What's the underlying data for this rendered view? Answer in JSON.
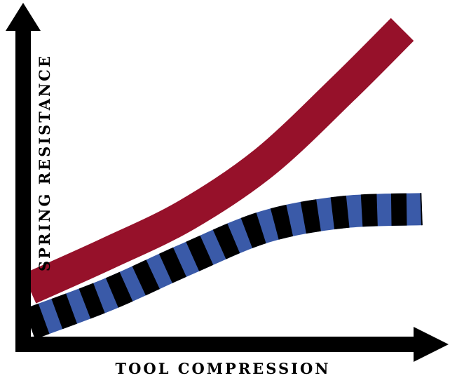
{
  "chart_data": {
    "type": "line",
    "title": "",
    "xlabel": "TOOL COMPRESSION",
    "ylabel": "SPRING RESISTANCE",
    "grid": false,
    "legend": "none",
    "series": [
      {
        "style": "solid",
        "color": "#96112a",
        "points": [
          [
            0,
            0.12
          ],
          [
            0.2,
            0.24
          ],
          [
            0.4,
            0.37
          ],
          [
            0.6,
            0.55
          ],
          [
            0.8,
            0.8
          ],
          [
            0.95,
            1.0
          ]
        ]
      },
      {
        "style": "striped",
        "colors": [
          "#3a5aa8",
          "#000000"
        ],
        "points": [
          [
            0,
            0.0
          ],
          [
            0.2,
            0.1
          ],
          [
            0.4,
            0.22
          ],
          [
            0.6,
            0.33
          ],
          [
            0.8,
            0.38
          ],
          [
            1.0,
            0.39
          ]
        ]
      }
    ]
  }
}
